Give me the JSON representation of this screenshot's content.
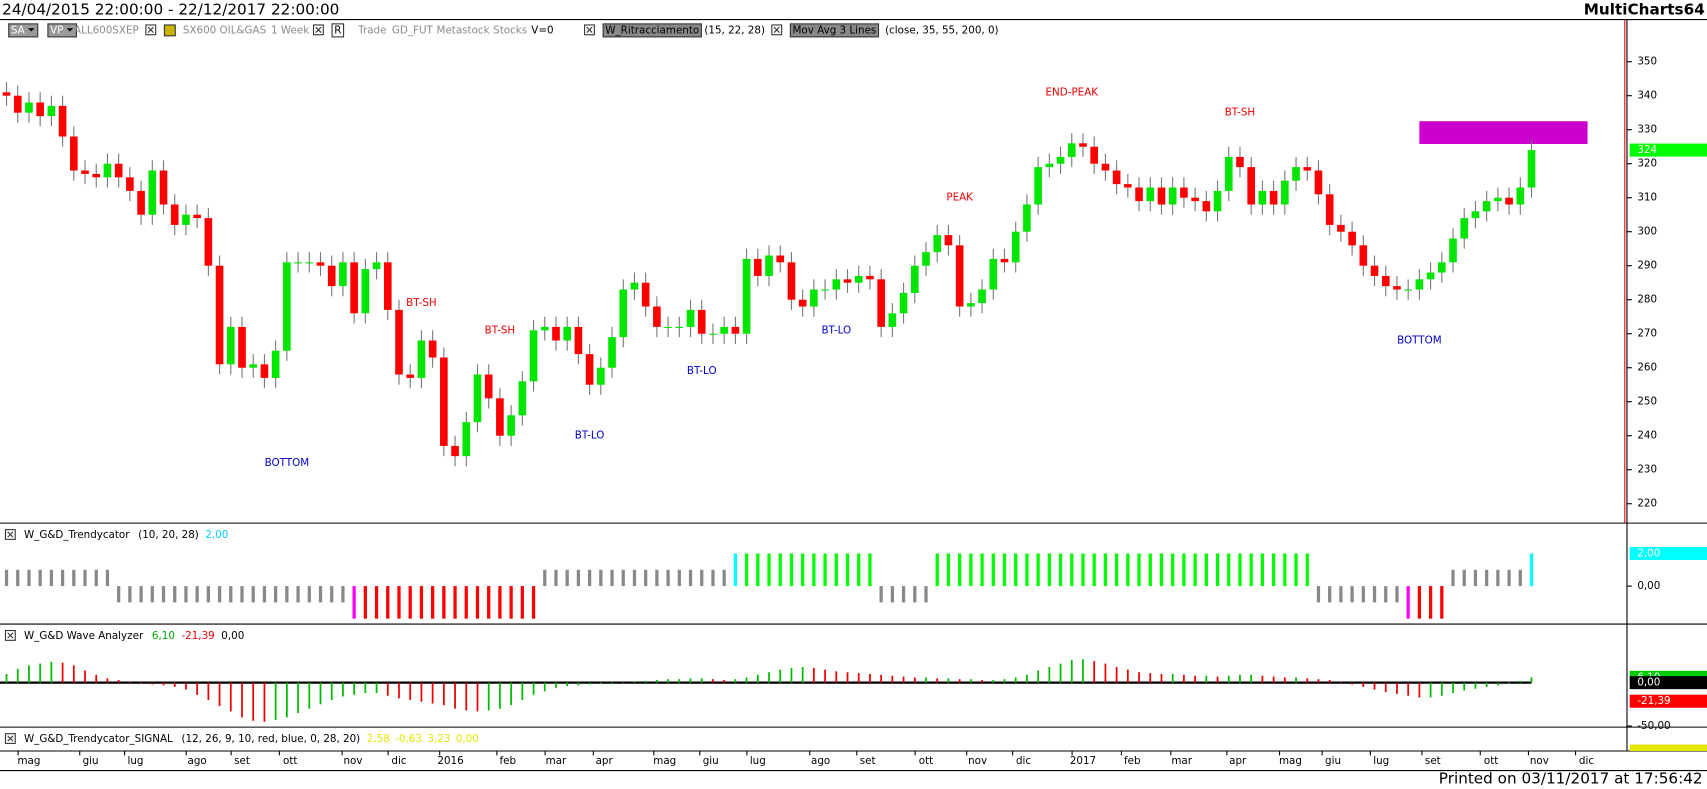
{
  "header": {
    "range": "24/04/2015 22:00:00 - 22/12/2017 22:00:00",
    "app": "MultiCharts64"
  },
  "toolbar": [
    "SA",
    "VP",
    "ALL600SXEP",
    "SX600 OIL&GAS",
    "1 Week",
    "R",
    "Trade",
    "GD_FUT",
    "Metastock",
    "Stocks",
    "V=0",
    "W_Ritracciamento",
    "(15, 22, 28)",
    "Mov Avg 3 Lines",
    "(close, 35, 55, 200, 0)"
  ],
  "chart_data": [
    {
      "type": "candlestick",
      "up_color": "#00e600",
      "down_color": "#ff0000",
      "wick_color": "#777777",
      "ylim": [
        214.3,
        362.4
      ],
      "yticks": [
        220,
        230,
        240,
        250,
        260,
        270,
        280,
        290,
        300,
        310,
        320,
        330,
        340,
        350
      ],
      "grid": false,
      "last_price": 324,
      "last_price_color": "#00ff00",
      "open": [
        341,
        340,
        335,
        338,
        334,
        337,
        328,
        318,
        317,
        316,
        320,
        316,
        312,
        305,
        318,
        308,
        302,
        305,
        304,
        290,
        261,
        272,
        260,
        261,
        257,
        265,
        291,
        291,
        291,
        290,
        284,
        291,
        276,
        289,
        291,
        277,
        258,
        257,
        268,
        263,
        237,
        234,
        244,
        258,
        251,
        240,
        246,
        256,
        271,
        272,
        268,
        272,
        264,
        255,
        260,
        269,
        283,
        285,
        278,
        272,
        272,
        272,
        277,
        270,
        270,
        272,
        270,
        292,
        287,
        293,
        291,
        280,
        278,
        283,
        283,
        286,
        285,
        287,
        286,
        272,
        276,
        282,
        290,
        294,
        299,
        296,
        278,
        279,
        283,
        292,
        291,
        300,
        308,
        319,
        320,
        322,
        326,
        325,
        320,
        318,
        314,
        313,
        309,
        313,
        308,
        313,
        310,
        309,
        306,
        312,
        322,
        319,
        308,
        312,
        308,
        315,
        319,
        318,
        311,
        302,
        300,
        296,
        290,
        287,
        284,
        283,
        283,
        286,
        288,
        291,
        298,
        304,
        306,
        309,
        310,
        308,
        313
      ],
      "high": [
        344,
        343,
        341,
        341,
        340,
        340,
        331,
        321,
        320,
        323,
        323,
        319,
        315,
        321,
        321,
        311,
        308,
        308,
        307,
        293,
        275,
        275,
        264,
        264,
        268,
        294,
        294,
        294,
        294,
        293,
        294,
        294,
        292,
        294,
        294,
        280,
        261,
        271,
        271,
        266,
        240,
        247,
        261,
        261,
        254,
        249,
        259,
        274,
        275,
        275,
        275,
        275,
        267,
        263,
        272,
        286,
        288,
        288,
        281,
        275,
        275,
        280,
        280,
        273,
        275,
        275,
        295,
        295,
        296,
        296,
        294,
        283,
        286,
        286,
        289,
        289,
        290,
        290,
        289,
        279,
        285,
        293,
        297,
        302,
        302,
        299,
        282,
        286,
        295,
        295,
        303,
        311,
        322,
        323,
        325,
        329,
        329,
        328,
        323,
        321,
        317,
        316,
        316,
        316,
        316,
        316,
        313,
        312,
        315,
        325,
        325,
        322,
        315,
        315,
        318,
        322,
        322,
        321,
        314,
        305,
        303,
        299,
        293,
        290,
        287,
        286,
        289,
        291,
        294,
        301,
        307,
        309,
        312,
        313,
        313,
        316,
        327
      ],
      "low": [
        337,
        332,
        332,
        331,
        331,
        325,
        315,
        314,
        313,
        313,
        313,
        309,
        302,
        302,
        305,
        299,
        299,
        301,
        287,
        258,
        258,
        257,
        257,
        254,
        254,
        262,
        288,
        288,
        287,
        281,
        281,
        273,
        273,
        286,
        274,
        255,
        254,
        254,
        260,
        234,
        231,
        231,
        241,
        248,
        237,
        237,
        243,
        253,
        268,
        265,
        265,
        261,
        252,
        252,
        257,
        266,
        280,
        275,
        269,
        269,
        269,
        269,
        267,
        267,
        267,
        267,
        267,
        284,
        284,
        288,
        277,
        275,
        275,
        280,
        280,
        282,
        282,
        283,
        269,
        269,
        273,
        279,
        287,
        291,
        293,
        275,
        275,
        276,
        280,
        288,
        288,
        297,
        305,
        316,
        317,
        319,
        322,
        317,
        315,
        311,
        310,
        306,
        306,
        305,
        305,
        307,
        306,
        303,
        303,
        309,
        316,
        305,
        305,
        305,
        305,
        312,
        315,
        308,
        299,
        297,
        293,
        287,
        284,
        281,
        280,
        280,
        280,
        283,
        285,
        288,
        295,
        301,
        303,
        306,
        305,
        305,
        310
      ],
      "close": [
        340,
        335,
        338,
        334,
        337,
        328,
        318,
        317,
        316,
        320,
        316,
        312,
        305,
        318,
        308,
        302,
        305,
        304,
        290,
        261,
        272,
        260,
        261,
        257,
        265,
        291,
        291,
        291,
        290,
        284,
        291,
        276,
        289,
        291,
        277,
        258,
        257,
        268,
        263,
        237,
        234,
        244,
        258,
        251,
        240,
        246,
        256,
        271,
        272,
        268,
        272,
        264,
        255,
        260,
        269,
        283,
        285,
        278,
        272,
        272,
        272,
        277,
        270,
        270,
        272,
        270,
        292,
        287,
        293,
        291,
        280,
        278,
        283,
        283,
        286,
        285,
        287,
        286,
        272,
        276,
        282,
        290,
        294,
        299,
        296,
        278,
        279,
        283,
        292,
        291,
        300,
        308,
        319,
        320,
        322,
        326,
        325,
        320,
        318,
        314,
        313,
        309,
        313,
        308,
        313,
        310,
        309,
        306,
        312,
        322,
        319,
        308,
        312,
        308,
        315,
        319,
        318,
        311,
        302,
        300,
        296,
        290,
        287,
        284,
        283,
        283,
        286,
        288,
        291,
        298,
        304,
        306,
        309,
        310,
        308,
        313,
        324
      ],
      "annotations": [
        {
          "text": "BOTTOM",
          "index": 25,
          "value": 232,
          "color": "#0000cc"
        },
        {
          "text": "BT-SH",
          "index": 37,
          "value": 279,
          "color": "#ee0000"
        },
        {
          "text": "BT-SH",
          "index": 44,
          "value": 271,
          "color": "#ee0000"
        },
        {
          "text": "BT-LO",
          "index": 52,
          "value": 240,
          "color": "#0000cc"
        },
        {
          "text": "BT-LO",
          "index": 62,
          "value": 259,
          "color": "#0000cc"
        },
        {
          "text": "BT-LO",
          "index": 74,
          "value": 271,
          "color": "#0000cc"
        },
        {
          "text": "PEAK",
          "index": 85,
          "value": 310,
          "color": "#ee0000"
        },
        {
          "text": "END-PEAK",
          "index": 95,
          "value": 341,
          "color": "#ee0000"
        },
        {
          "text": "BT-SH",
          "index": 110,
          "value": 335,
          "color": "#ee0000"
        },
        {
          "text": "BOTTOM",
          "index": 126,
          "value": 268,
          "color": "#0000cc"
        }
      ],
      "zone": {
        "from_index": 126,
        "to_index": 141,
        "low": 325.8,
        "high": 332.5,
        "color": "#cc00cc"
      },
      "xticks": [
        {
          "value": 2,
          "label": "mag"
        },
        {
          "value": 7.5,
          "label": "giu"
        },
        {
          "value": 11.5,
          "label": "lug"
        },
        {
          "value": 17,
          "label": "ago"
        },
        {
          "value": 21,
          "label": "set"
        },
        {
          "value": 25.3,
          "label": "ott"
        },
        {
          "value": 30.9,
          "label": "nov"
        },
        {
          "value": 35,
          "label": "dic"
        },
        {
          "value": 39.6,
          "label": "2016"
        },
        {
          "value": 44.7,
          "label": "feb"
        },
        {
          "value": 49,
          "label": "mar"
        },
        {
          "value": 53.3,
          "label": "apr"
        },
        {
          "value": 58.7,
          "label": "mag"
        },
        {
          "value": 62.8,
          "label": "giu"
        },
        {
          "value": 67,
          "label": "lug"
        },
        {
          "value": 72.6,
          "label": "ago"
        },
        {
          "value": 76.8,
          "label": "set"
        },
        {
          "value": 82,
          "label": "ott"
        },
        {
          "value": 86.6,
          "label": "nov"
        },
        {
          "value": 90.7,
          "label": "dic"
        },
        {
          "value": 96,
          "label": "2017"
        },
        {
          "value": 100.4,
          "label": "feb"
        },
        {
          "value": 104.8,
          "label": "mar"
        },
        {
          "value": 109.8,
          "label": "apr"
        },
        {
          "value": 114.5,
          "label": "mag"
        },
        {
          "value": 118.3,
          "label": "giu"
        },
        {
          "value": 122.6,
          "label": "lug"
        },
        {
          "value": 127.2,
          "label": "set"
        },
        {
          "value": 132.4,
          "label": "ott"
        },
        {
          "value": 136.7,
          "label": "nov"
        },
        {
          "value": 140.9,
          "label": "dic"
        }
      ]
    },
    {
      "type": "bar",
      "name": "W_G&D_Trendycator",
      "params": "(10, 20, 28)",
      "legend_values": [
        {
          "text": "2,00",
          "color": "#00ccff"
        }
      ],
      "ylim": [
        -2.33,
        3.8
      ],
      "yticks": [
        {
          "value": 0,
          "label": "0,00"
        }
      ],
      "value_tags": [
        {
          "value": 2,
          "label": "2,00",
          "color": "#00ffff"
        }
      ],
      "values": [
        1,
        1,
        1,
        1,
        1,
        1,
        1,
        1,
        1,
        1,
        -1,
        -1,
        -1,
        -1,
        -1,
        -1,
        -1,
        -1,
        -1,
        -1,
        -1,
        -1,
        -1,
        -1,
        -1,
        -1,
        -1,
        -1,
        -1,
        -1,
        -1,
        -2,
        -2,
        -2,
        -2,
        -2,
        -2,
        -2,
        -2,
        -2,
        -2,
        -2,
        -2,
        -2,
        -2,
        -2,
        -2,
        -2,
        1,
        1,
        1,
        1,
        1,
        1,
        1,
        1,
        1,
        1,
        1,
        1,
        1,
        1,
        1,
        1,
        1,
        2,
        2,
        2,
        2,
        2,
        2,
        2,
        2,
        2,
        2,
        2,
        2,
        2,
        -1,
        -1,
        -1,
        -1,
        -1,
        2,
        2,
        2,
        2,
        2,
        2,
        2,
        2,
        2,
        2,
        2,
        2,
        2,
        2,
        2,
        2,
        2,
        2,
        2,
        2,
        2,
        2,
        2,
        2,
        2,
        2,
        2,
        2,
        2,
        2,
        2,
        2,
        2,
        2,
        -1,
        -1,
        -1,
        -1,
        -1,
        -1,
        -1,
        -1,
        -2,
        -2,
        -2,
        -2,
        1,
        1,
        1,
        1,
        1,
        1,
        1,
        2
      ],
      "colors": [
        "#888",
        "#888",
        "#888",
        "#888",
        "#888",
        "#888",
        "#888",
        "#888",
        "#888",
        "#888",
        "#888",
        "#888",
        "#888",
        "#888",
        "#888",
        "#888",
        "#888",
        "#888",
        "#888",
        "#888",
        "#888",
        "#888",
        "#888",
        "#888",
        "#888",
        "#888",
        "#888",
        "#888",
        "#888",
        "#888",
        "#888",
        "#f0f",
        "#f00",
        "#f00",
        "#f00",
        "#f00",
        "#f00",
        "#f00",
        "#f00",
        "#f00",
        "#f00",
        "#f00",
        "#f00",
        "#f00",
        "#f00",
        "#f00",
        "#f00",
        "#f00",
        "#888",
        "#888",
        "#888",
        "#888",
        "#888",
        "#888",
        "#888",
        "#888",
        "#888",
        "#888",
        "#888",
        "#888",
        "#888",
        "#888",
        "#888",
        "#888",
        "#888",
        "#0ff",
        "#0f0",
        "#0f0",
        "#0f0",
        "#0f0",
        "#0f0",
        "#0f0",
        "#0f0",
        "#0f0",
        "#0f0",
        "#0f0",
        "#0f0",
        "#0f0",
        "#888",
        "#888",
        "#888",
        "#888",
        "#888",
        "#0f0",
        "#0f0",
        "#0f0",
        "#0f0",
        "#0f0",
        "#0f0",
        "#0f0",
        "#0f0",
        "#0f0",
        "#0f0",
        "#0f0",
        "#0f0",
        "#0f0",
        "#0f0",
        "#0f0",
        "#0f0",
        "#0f0",
        "#0f0",
        "#0f0",
        "#0f0",
        "#0f0",
        "#0f0",
        "#0f0",
        "#0f0",
        "#0f0",
        "#0f0",
        "#0f0",
        "#0f0",
        "#0f0",
        "#0f0",
        "#0f0",
        "#0f0",
        "#0f0",
        "#0f0",
        "#888",
        "#888",
        "#888",
        "#888",
        "#888",
        "#888",
        "#888",
        "#888",
        "#f0f",
        "#f00",
        "#f00",
        "#f00",
        "#888",
        "#888",
        "#888",
        "#888",
        "#888",
        "#888",
        "#888",
        "#0ff"
      ]
    },
    {
      "type": "histogram",
      "name": "W_G&D Wave Analyzer",
      "params": "",
      "legend_values": [
        {
          "text": "6,10",
          "color": "#00aa00"
        },
        {
          "text": "-21,39",
          "color": "#ee0000"
        },
        {
          "text": "0,00",
          "color": "#000000"
        }
      ],
      "up_color": "#00bb00",
      "down_color": "#ee0000",
      "ylim": [
        -51.25,
        66.25
      ],
      "yticks": [
        {
          "value": -50,
          "label": "-50,00"
        }
      ],
      "value_tags": [
        {
          "value": 6.1,
          "label": "6,10",
          "color": "#00cc00"
        },
        {
          "value": 0,
          "label": "0,00",
          "color": "#000000"
        },
        {
          "value": -21.39,
          "label": "-21,39",
          "color": "#ff0000"
        }
      ],
      "values": [
        10,
        16,
        20,
        22,
        24,
        23,
        20,
        14,
        9,
        5,
        3,
        1,
        -1,
        -2,
        -3,
        -5,
        -8,
        -14,
        -20,
        -27,
        -33,
        -40,
        -44,
        -45,
        -43,
        -40,
        -35,
        -30,
        -25,
        -20,
        -16,
        -14,
        -12,
        -12,
        -15,
        -18,
        -20,
        -22,
        -24,
        -26,
        -30,
        -32,
        -33,
        -32,
        -30,
        -26,
        -20,
        -14,
        -10,
        -6,
        -4,
        -3,
        -2,
        -1,
        -1,
        0,
        1,
        2,
        3,
        4,
        4,
        5,
        5,
        4,
        3,
        4,
        6,
        9,
        12,
        15,
        17,
        18,
        17,
        15,
        13,
        12,
        11,
        10,
        9,
        8,
        7,
        6,
        6,
        5,
        5,
        4,
        4,
        3,
        3,
        4,
        6,
        9,
        14,
        18,
        22,
        26,
        27,
        25,
        22,
        18,
        15,
        12,
        11,
        10,
        10,
        9,
        8,
        8,
        7,
        8,
        9,
        9,
        8,
        7,
        6,
        6,
        5,
        4,
        3,
        1,
        -2,
        -5,
        -8,
        -11,
        -13,
        -15,
        -17,
        -17,
        -15,
        -12,
        -9,
        -7,
        -5,
        -3,
        -1,
        2,
        6.1
      ]
    }
  ],
  "signal_panel": {
    "name": "W_G&D_Trendycator_SIGNAL",
    "params": "(12, 26, 9, 10, red, blue, 0, 28, 20)",
    "values": [
      "2,58",
      "-0,63",
      "3,23",
      "0,00"
    ],
    "color": "#e6e600"
  },
  "footer": "Printed on 03/11/2017 at 17:56:42"
}
